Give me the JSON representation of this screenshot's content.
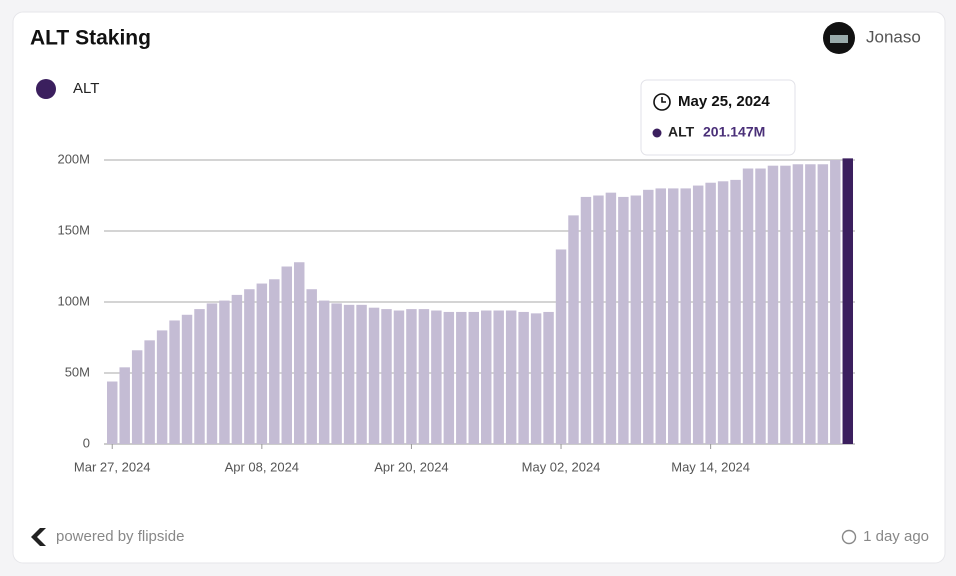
{
  "header": {
    "title": "ALT Staking",
    "user": "Jonaso"
  },
  "chart_data": {
    "type": "bar",
    "categories": [
      "Mar 27, 2024",
      null,
      null,
      null,
      null,
      null,
      null,
      null,
      null,
      null,
      null,
      null,
      "Apr 08, 2024",
      null,
      null,
      null,
      null,
      null,
      null,
      null,
      null,
      null,
      null,
      null,
      "Apr 20, 2024",
      null,
      null,
      null,
      null,
      null,
      null,
      null,
      null,
      null,
      null,
      null,
      "May 02, 2024",
      null,
      null,
      null,
      null,
      null,
      null,
      null,
      null,
      null,
      null,
      null,
      "May 14, 2024",
      null,
      null,
      null,
      null,
      null,
      null,
      null,
      null,
      null,
      null,
      null
    ],
    "series": [
      {
        "name": "ALT",
        "color": "#c4bcd4",
        "highlight_color": "#3b1f5e",
        "values": [
          44,
          54,
          66,
          73,
          80,
          87,
          91,
          95,
          99,
          101,
          105,
          109,
          113,
          116,
          125,
          128,
          109,
          101,
          99,
          98,
          98,
          96,
          95,
          94,
          95,
          95,
          94,
          93,
          93,
          93,
          94,
          94,
          94,
          93,
          92,
          93,
          137,
          161,
          174,
          175,
          177,
          174,
          175,
          179,
          180,
          180,
          180,
          182,
          184,
          185,
          186,
          194,
          194,
          196,
          196,
          197,
          197,
          197,
          200,
          201.147
        ]
      }
    ],
    "highlight_index": 59,
    "ylim": [
      0,
      200
    ],
    "yticks": [
      {
        "value": 0,
        "label": "0"
      },
      {
        "value": 50,
        "label": "50M"
      },
      {
        "value": 100,
        "label": "100M"
      },
      {
        "value": 150,
        "label": "150M"
      },
      {
        "value": 200,
        "label": "200M"
      }
    ],
    "grid": true,
    "tooltip": {
      "date": "May 25, 2024",
      "series": "ALT",
      "value_label": "201.147M"
    }
  },
  "footer": {
    "powered": "powered by flipside",
    "updated": "1 day ago"
  }
}
